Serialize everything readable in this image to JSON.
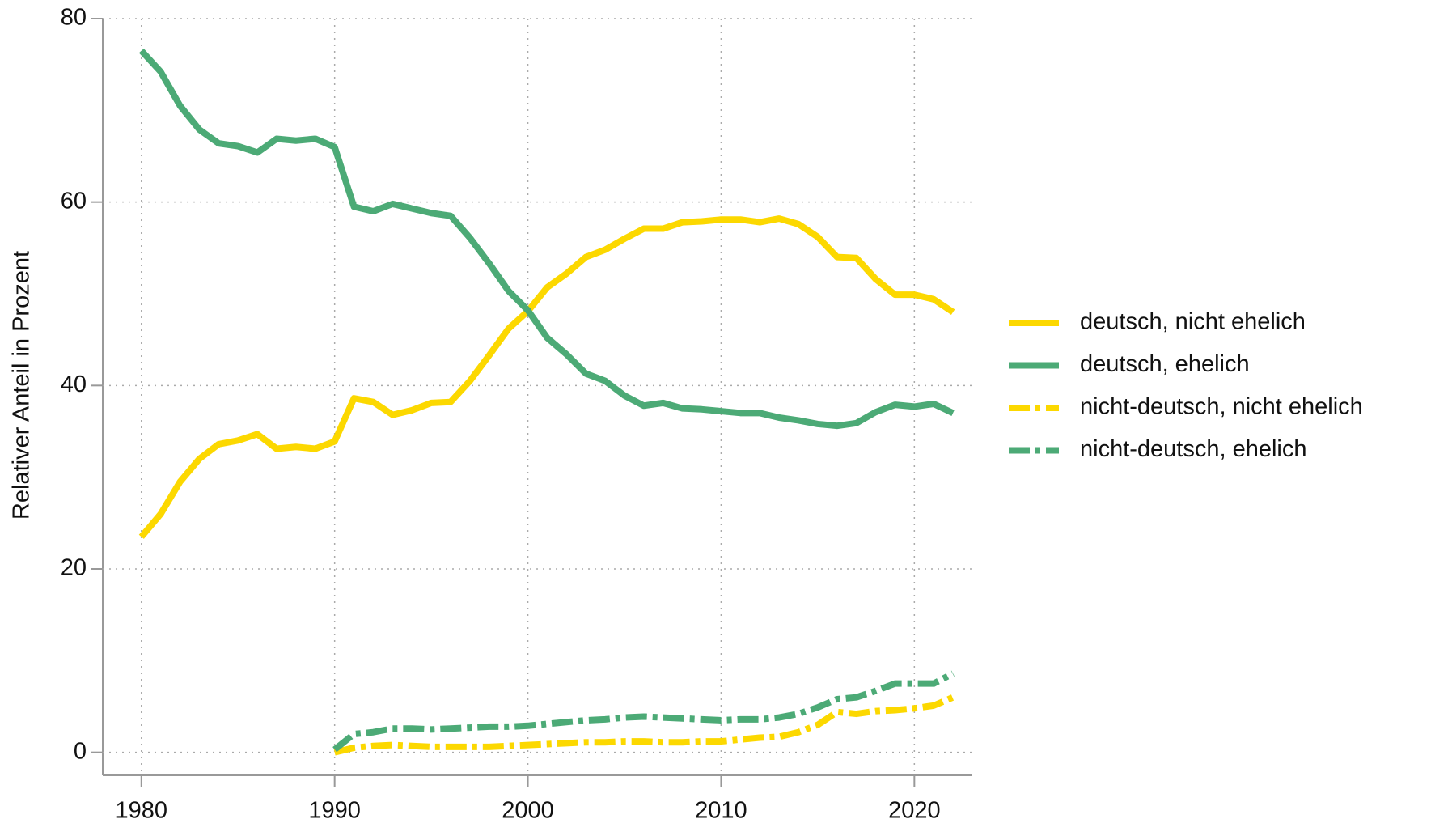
{
  "chart_data": {
    "type": "line",
    "y_label": "Relativer Anteil in Prozent",
    "x": [
      1980,
      1981,
      1982,
      1983,
      1984,
      1985,
      1986,
      1987,
      1988,
      1989,
      1990,
      1991,
      1992,
      1993,
      1994,
      1995,
      1996,
      1997,
      1998,
      1999,
      2000,
      2001,
      2002,
      2003,
      2004,
      2005,
      2006,
      2007,
      2008,
      2009,
      2010,
      2011,
      2012,
      2013,
      2014,
      2015,
      2016,
      2017,
      2018,
      2019,
      2020,
      2021,
      2022
    ],
    "series": [
      {
        "name": "deutsch, nicht ehelich",
        "color": "#fcd800",
        "dash": "solid",
        "values": [
          23.5,
          26,
          29.5,
          32,
          33.6,
          34,
          34.7,
          33.1,
          33.3,
          33.1,
          33.9,
          38.6,
          38.2,
          36.8,
          37.3,
          38.1,
          38.2,
          40.5,
          43.3,
          46.2,
          48.1,
          50.7,
          52.2,
          54,
          54.8,
          56,
          57.1,
          57.1,
          57.8,
          57.9,
          58.1,
          58.1,
          57.8,
          58.2,
          57.6,
          56.2,
          54,
          53.9,
          51.6,
          49.9,
          49.9,
          49.4,
          48
        ]
      },
      {
        "name": "deutsch, ehelich",
        "color": "#4caa76",
        "dash": "solid",
        "values": [
          76.5,
          74.2,
          70.5,
          67.9,
          66.4,
          66.1,
          65.4,
          66.9,
          66.7,
          66.9,
          66,
          59.5,
          59,
          59.8,
          59.3,
          58.8,
          58.5,
          56.1,
          53.3,
          50.3,
          48.2,
          45.2,
          43.4,
          41.3,
          40.5,
          38.9,
          37.8,
          38.1,
          37.5,
          37.4,
          37.2,
          37,
          37,
          36.5,
          36.2,
          35.8,
          35.6,
          35.9,
          37.1,
          37.9,
          37.7,
          38,
          37
        ]
      },
      {
        "name": "nicht-deutsch, nicht ehelich",
        "color": "#fcd800",
        "dash": "dashdot",
        "values": [
          null,
          null,
          null,
          null,
          null,
          null,
          null,
          null,
          null,
          null,
          0,
          0.5,
          0.7,
          0.8,
          0.7,
          0.6,
          0.6,
          0.6,
          0.6,
          0.7,
          0.8,
          0.9,
          1,
          1.1,
          1.1,
          1.2,
          1.2,
          1.1,
          1.1,
          1.2,
          1.2,
          1.4,
          1.6,
          1.7,
          2.2,
          3.0,
          4.4,
          4.2,
          4.5,
          4.6,
          4.8,
          5.1,
          6
        ]
      },
      {
        "name": "nicht-deutsch, ehelich",
        "color": "#4caa76",
        "dash": "dashdot",
        "values": [
          null,
          null,
          null,
          null,
          null,
          null,
          null,
          null,
          null,
          null,
          0.3,
          2,
          2.2,
          2.6,
          2.6,
          2.5,
          2.6,
          2.7,
          2.8,
          2.8,
          2.9,
          3.1,
          3.3,
          3.5,
          3.6,
          3.8,
          3.9,
          3.8,
          3.7,
          3.6,
          3.5,
          3.6,
          3.6,
          3.8,
          4.2,
          4.9,
          5.8,
          6,
          6.7,
          7.5,
          7.5,
          7.5,
          8.6
        ]
      }
    ],
    "xlim": [
      1978,
      2023
    ],
    "xticks": [
      1980,
      1990,
      2000,
      2010,
      2020
    ],
    "ylim": [
      -2.5,
      80
    ],
    "yticks": [
      0,
      20,
      40,
      60,
      80
    ],
    "grid": true,
    "legend": "right"
  }
}
